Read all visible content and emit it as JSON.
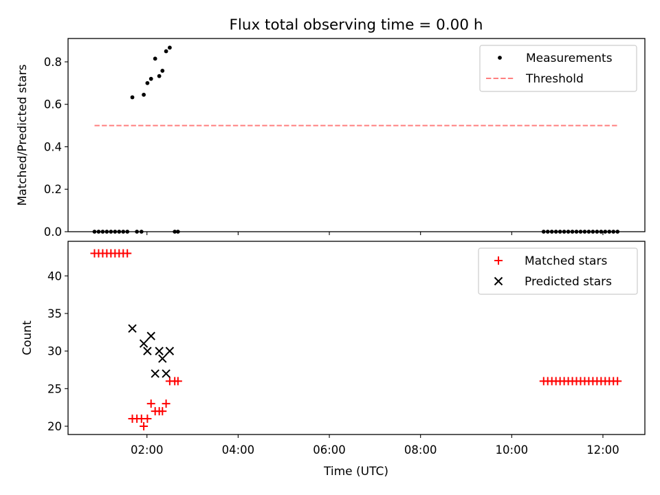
{
  "chart_data": {
    "title": "Flux total observing time = 0.00 h",
    "xlabel": "Time (UTC)",
    "xlim": [
      0.27,
      12.92
    ],
    "x_ticks": [
      {
        "value": 2,
        "label": "02:00"
      },
      {
        "value": 4,
        "label": "04:00"
      },
      {
        "value": 6,
        "label": "06:00"
      },
      {
        "value": 8,
        "label": "08:00"
      },
      {
        "value": 10,
        "label": "10:00"
      },
      {
        "value": 12,
        "label": "12:00"
      }
    ],
    "panels": [
      {
        "type": "scatter",
        "ylabel": "Matched/Predicted stars",
        "ylim": [
          0,
          0.91
        ],
        "y_ticks": [
          {
            "value": 0,
            "label": "0.0"
          },
          {
            "value": 0.2,
            "label": "0.2"
          },
          {
            "value": 0.4,
            "label": "0.4"
          },
          {
            "value": 0.6,
            "label": "0.6"
          },
          {
            "value": 0.8,
            "label": "0.8"
          }
        ],
        "legend": {
          "position": "top-right",
          "entries": [
            "Measurements",
            "Threshold"
          ]
        },
        "series": [
          {
            "name": "Measurements",
            "kind": "scatter",
            "marker": "dot",
            "color": "#000000",
            "points": [
              [
                0.85,
                0
              ],
              [
                0.94,
                0
              ],
              [
                1.03,
                0
              ],
              [
                1.12,
                0
              ],
              [
                1.21,
                0
              ],
              [
                1.3,
                0
              ],
              [
                1.39,
                0
              ],
              [
                1.48,
                0
              ],
              [
                1.57,
                0
              ],
              [
                1.68,
                0.633
              ],
              [
                1.78,
                0
              ],
              [
                1.88,
                0
              ],
              [
                1.93,
                0.645
              ],
              [
                2.01,
                0.7
              ],
              [
                2.09,
                0.72
              ],
              [
                2.18,
                0.815
              ],
              [
                2.27,
                0.733
              ],
              [
                2.34,
                0.758
              ],
              [
                2.42,
                0.85
              ],
              [
                2.5,
                0.867
              ],
              [
                2.61,
                0
              ],
              [
                2.68,
                0
              ],
              [
                10.7,
                0
              ],
              [
                10.79,
                0
              ],
              [
                10.88,
                0
              ],
              [
                10.97,
                0
              ],
              [
                11.06,
                0
              ],
              [
                11.15,
                0
              ],
              [
                11.24,
                0
              ],
              [
                11.33,
                0
              ],
              [
                11.42,
                0
              ],
              [
                11.51,
                0
              ],
              [
                11.6,
                0
              ],
              [
                11.69,
                0
              ],
              [
                11.78,
                0
              ],
              [
                11.87,
                0
              ],
              [
                11.96,
                0
              ],
              [
                12.05,
                0
              ],
              [
                12.14,
                0
              ],
              [
                12.23,
                0
              ],
              [
                12.32,
                0
              ]
            ]
          },
          {
            "name": "Threshold",
            "kind": "line",
            "dash": "dashed",
            "color": "#ff7f7f",
            "points": [
              [
                0.85,
                0.5
              ],
              [
                12.32,
                0.5
              ]
            ]
          }
        ]
      },
      {
        "type": "scatter",
        "ylabel": "Count",
        "ylim": [
          18.9,
          44.6
        ],
        "y_ticks": [
          {
            "value": 20,
            "label": "20"
          },
          {
            "value": 25,
            "label": "25"
          },
          {
            "value": 30,
            "label": "30"
          },
          {
            "value": 35,
            "label": "35"
          },
          {
            "value": 40,
            "label": "40"
          }
        ],
        "legend": {
          "position": "top-right",
          "entries": [
            "Matched stars",
            "Predicted stars"
          ]
        },
        "series": [
          {
            "name": "Matched stars",
            "kind": "scatter",
            "marker": "plus",
            "color": "#ff0000",
            "points": [
              [
                0.85,
                43
              ],
              [
                0.94,
                43
              ],
              [
                1.03,
                43
              ],
              [
                1.12,
                43
              ],
              [
                1.21,
                43
              ],
              [
                1.3,
                43
              ],
              [
                1.39,
                43
              ],
              [
                1.48,
                43
              ],
              [
                1.57,
                43
              ],
              [
                1.68,
                21
              ],
              [
                1.78,
                21
              ],
              [
                1.88,
                21
              ],
              [
                1.93,
                20
              ],
              [
                2.01,
                21
              ],
              [
                2.09,
                23
              ],
              [
                2.18,
                22
              ],
              [
                2.27,
                22
              ],
              [
                2.34,
                22
              ],
              [
                2.42,
                23
              ],
              [
                2.5,
                26
              ],
              [
                2.61,
                26
              ],
              [
                2.68,
                26
              ],
              [
                10.7,
                26
              ],
              [
                10.79,
                26
              ],
              [
                10.88,
                26
              ],
              [
                10.97,
                26
              ],
              [
                11.06,
                26
              ],
              [
                11.15,
                26
              ],
              [
                11.24,
                26
              ],
              [
                11.33,
                26
              ],
              [
                11.42,
                26
              ],
              [
                11.51,
                26
              ],
              [
                11.6,
                26
              ],
              [
                11.69,
                26
              ],
              [
                11.78,
                26
              ],
              [
                11.87,
                26
              ],
              [
                11.96,
                26
              ],
              [
                12.05,
                26
              ],
              [
                12.14,
                26
              ],
              [
                12.23,
                26
              ],
              [
                12.32,
                26
              ]
            ]
          },
          {
            "name": "Predicted stars",
            "kind": "scatter",
            "marker": "x",
            "color": "#000000",
            "points": [
              [
                1.68,
                33
              ],
              [
                1.93,
                31
              ],
              [
                2.01,
                30
              ],
              [
                2.09,
                32
              ],
              [
                2.18,
                27
              ],
              [
                2.27,
                30
              ],
              [
                2.34,
                29
              ],
              [
                2.42,
                27
              ],
              [
                2.5,
                30
              ]
            ]
          }
        ]
      }
    ]
  }
}
